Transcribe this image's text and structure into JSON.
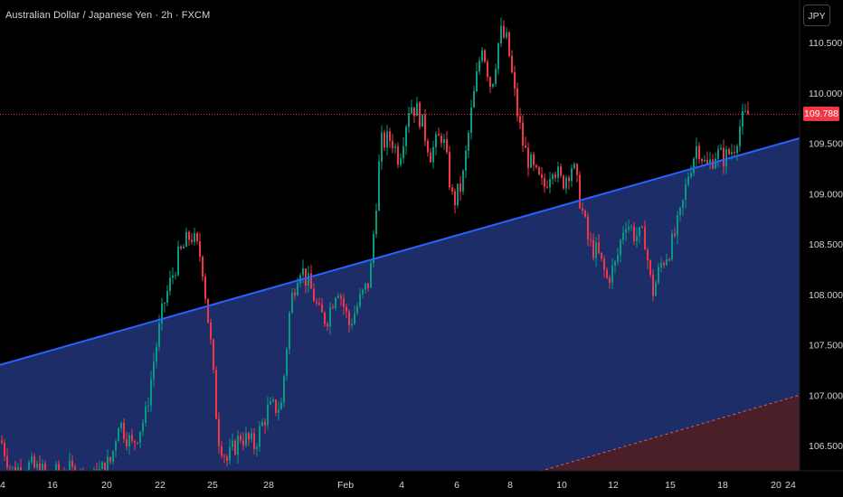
{
  "header": {
    "title": "Australian Dollar / Japanese Yen · 2h · FXCM",
    "currency_button": "JPY"
  },
  "last_price": {
    "label": "109.788",
    "value": 109.788,
    "color": "#f23645"
  },
  "colors": {
    "up": "#089981",
    "down": "#f23645",
    "trendline": "#2962ff",
    "channel_fill": "#1e2f6e",
    "lower_fill": "#4a1f27",
    "background": "#000000"
  },
  "chart_data": {
    "type": "candlestick",
    "symbol": "Australian Dollar / Japanese Yen",
    "interval": "2h",
    "source": "FXCM",
    "y_axis": {
      "range": [
        106.2,
        110.75
      ],
      "ticks": [
        "110.500",
        "110.000",
        "109.500",
        "109.000",
        "108.500",
        "108.000",
        "107.500",
        "107.000",
        "106.500"
      ],
      "tick_values": [
        110.5,
        110.0,
        109.5,
        109.0,
        108.5,
        108.0,
        107.5,
        107.0,
        106.5
      ]
    },
    "x_axis": {
      "labels": [
        "4",
        "16",
        "20",
        "22",
        "25",
        "28",
        "Feb",
        "4",
        "6",
        "8",
        "10",
        "12",
        "15",
        "18",
        "20",
        "24"
      ],
      "label_positions_index": [
        0,
        58,
        118,
        177,
        235,
        297,
        382,
        444,
        505,
        564,
        621,
        678,
        741,
        799,
        858,
        874
      ]
    },
    "price_line": 109.788,
    "trendline": {
      "start": {
        "x_label": "4",
        "price": 107.3
      },
      "end": {
        "x_label": "24",
        "price": 109.55
      }
    },
    "lower_line": {
      "start": {
        "x_label": "10",
        "price": 106.2
      },
      "end": {
        "x_label": "24",
        "price": 107.0
      }
    },
    "grid": false,
    "series": [
      {
        "waypoints": [
          [
            0,
            106.55
          ],
          [
            12,
            106.25
          ],
          [
            30,
            106.3
          ],
          [
            55,
            106.2
          ],
          [
            75,
            106.25
          ],
          [
            100,
            106.15
          ],
          [
            122,
            106.35
          ],
          [
            130,
            106.75
          ],
          [
            145,
            106.5
          ],
          [
            160,
            106.8
          ],
          [
            170,
            107.4
          ],
          [
            180,
            107.9
          ],
          [
            195,
            108.35
          ],
          [
            210,
            108.6
          ],
          [
            222,
            108.35
          ],
          [
            232,
            107.5
          ],
          [
            240,
            106.6
          ],
          [
            250,
            106.35
          ],
          [
            265,
            106.6
          ],
          [
            280,
            106.5
          ],
          [
            295,
            106.85
          ],
          [
            310,
            106.9
          ],
          [
            320,
            107.9
          ],
          [
            330,
            108.3
          ],
          [
            345,
            108.0
          ],
          [
            352,
            107.8
          ],
          [
            360,
            107.75
          ],
          [
            372,
            108.1
          ],
          [
            385,
            107.7
          ],
          [
            395,
            107.9
          ],
          [
            408,
            108.15
          ],
          [
            420,
            109.5
          ],
          [
            432,
            109.55
          ],
          [
            440,
            109.35
          ],
          [
            452,
            109.9
          ],
          [
            462,
            109.8
          ],
          [
            475,
            109.4
          ],
          [
            488,
            109.6
          ],
          [
            500,
            108.9
          ],
          [
            510,
            109.1
          ],
          [
            520,
            109.8
          ],
          [
            532,
            110.5
          ],
          [
            542,
            110.05
          ],
          [
            552,
            110.6
          ],
          [
            560,
            110.5
          ],
          [
            570,
            109.85
          ],
          [
            578,
            109.45
          ],
          [
            590,
            109.2
          ],
          [
            600,
            109.05
          ],
          [
            610,
            109.3
          ],
          [
            620,
            109.1
          ],
          [
            632,
            109.3
          ],
          [
            640,
            108.95
          ],
          [
            650,
            108.5
          ],
          [
            660,
            108.4
          ],
          [
            670,
            108.15
          ],
          [
            680,
            108.3
          ],
          [
            690,
            108.75
          ],
          [
            700,
            108.6
          ],
          [
            712,
            108.55
          ],
          [
            720,
            108.0
          ],
          [
            730,
            108.3
          ],
          [
            742,
            108.5
          ],
          [
            752,
            108.8
          ],
          [
            760,
            109.2
          ],
          [
            770,
            109.5
          ],
          [
            780,
            109.25
          ],
          [
            790,
            109.4
          ],
          [
            800,
            109.35
          ],
          [
            810,
            109.45
          ],
          [
            818,
            109.7
          ],
          [
            826,
            109.788
          ]
        ]
      }
    ]
  }
}
